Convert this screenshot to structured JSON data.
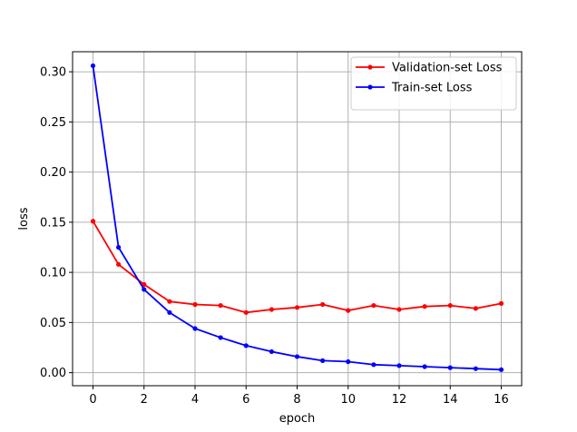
{
  "chart_data": {
    "type": "line",
    "title": "",
    "xlabel": "epoch",
    "ylabel": "loss",
    "xlim": [
      -0.8,
      16.8
    ],
    "ylim": [
      -0.013,
      0.32
    ],
    "x_ticks": [
      0,
      2,
      4,
      6,
      8,
      10,
      12,
      14,
      16
    ],
    "x_tick_labels": [
      "0",
      "2",
      "4",
      "6",
      "8",
      "10",
      "12",
      "14",
      "16"
    ],
    "y_ticks": [
      0.0,
      0.05,
      0.1,
      0.15,
      0.2,
      0.25,
      0.3
    ],
    "y_tick_labels": [
      "0.00",
      "0.05",
      "0.10",
      "0.15",
      "0.20",
      "0.25",
      "0.30"
    ],
    "grid": true,
    "legend_position": "top-right",
    "x": [
      0,
      1,
      2,
      3,
      4,
      5,
      6,
      7,
      8,
      9,
      10,
      11,
      12,
      13,
      14,
      15,
      16
    ],
    "series": [
      {
        "name": "Validation-set Loss",
        "color": "#ff0000",
        "values": [
          0.151,
          0.108,
          0.088,
          0.071,
          0.068,
          0.067,
          0.06,
          0.063,
          0.065,
          0.068,
          0.062,
          0.067,
          0.063,
          0.066,
          0.067,
          0.064,
          0.069
        ]
      },
      {
        "name": "Train-set Loss",
        "color": "#0000ff",
        "values": [
          0.306,
          0.125,
          0.083,
          0.06,
          0.044,
          0.035,
          0.027,
          0.021,
          0.016,
          0.012,
          0.011,
          0.008,
          0.007,
          0.006,
          0.005,
          0.004,
          0.003
        ]
      }
    ]
  }
}
